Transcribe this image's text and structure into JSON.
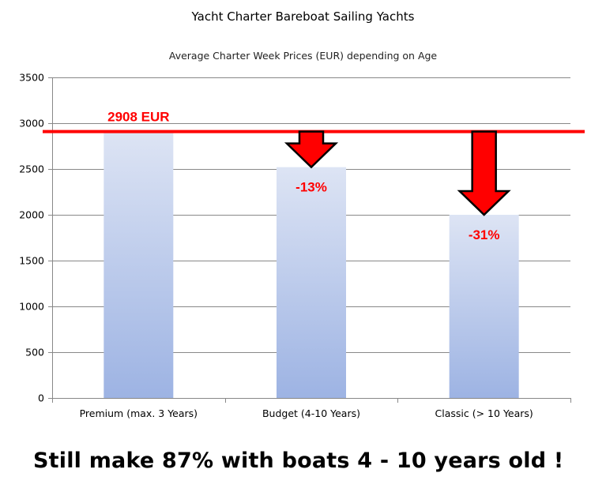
{
  "chart_data": {
    "type": "bar",
    "title": "Yacht Charter Bareboat Sailing Yachts",
    "subtitle": "Average Charter Week Prices (EUR) depending on Age",
    "categories": [
      "Premium (max. 3 Years)",
      "Budget (4-10 Years)",
      "Classic (> 10 Years)"
    ],
    "values": [
      2908,
      2520,
      2000
    ],
    "ylim": [
      0,
      3500
    ],
    "yticks": [
      0,
      500,
      1000,
      1500,
      2000,
      2500,
      3000,
      3500
    ],
    "grid": true,
    "bar_gradient": [
      "#dde4f4",
      "#9db3e3"
    ],
    "reference_line": {
      "value": 2908,
      "label": "2908 EUR",
      "color": "#ff0000"
    },
    "annotations": [
      {
        "category_index": 1,
        "label": "-13%",
        "color": "#ff0000"
      },
      {
        "category_index": 2,
        "label": "-31%",
        "color": "#ff0000"
      }
    ]
  },
  "caption": "Still make 87% with boats 4 - 10 years old !"
}
